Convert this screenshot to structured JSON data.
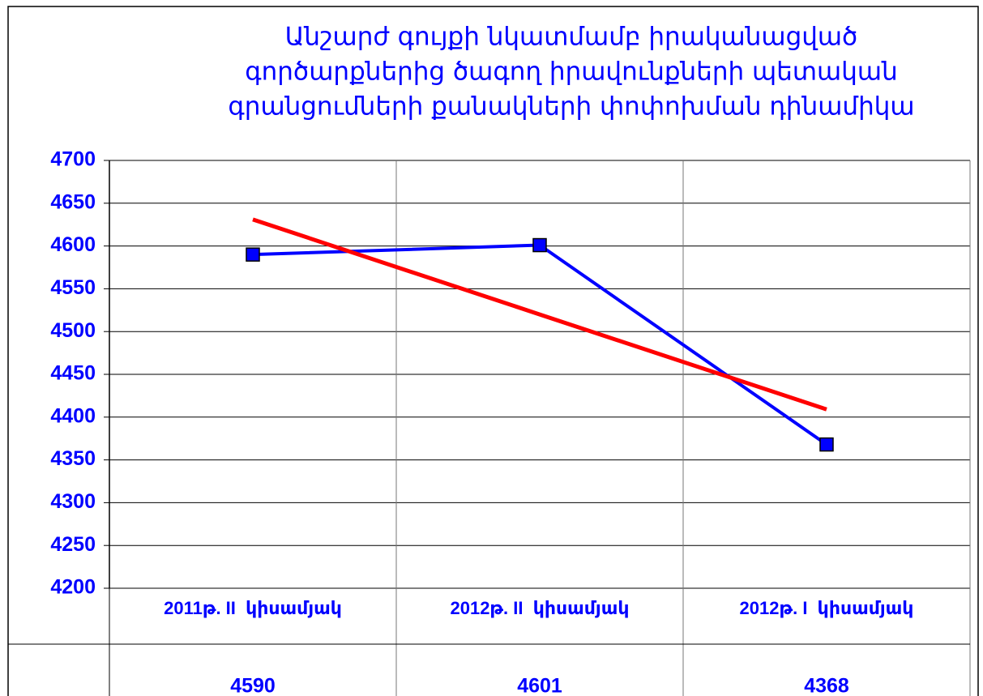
{
  "chart_data": {
    "type": "line",
    "title": [
      "Անշարժ գույքի նկատմամբ իրականացված",
      "գործարքներից ծագող իրավունքների պետական",
      "գրանցումների քանակների փոփոխման դինամիկա"
    ],
    "categories": [
      "2011թ. II  կիսամյակ",
      "2012թ. II  կիսամյակ",
      "2012թ. I  կիսամյակ"
    ],
    "values": [
      4590,
      4601,
      4368
    ],
    "color": "#0000ff",
    "trendline": {
      "color": "#ff0000",
      "values": [
        4631,
        4520,
        4409
      ]
    },
    "ylim": [
      4200,
      4700
    ],
    "yticks": [
      4200,
      4250,
      4300,
      4350,
      4400,
      4450,
      4500,
      4550,
      4600,
      4650,
      4700
    ],
    "grid": true,
    "data_table": true
  }
}
